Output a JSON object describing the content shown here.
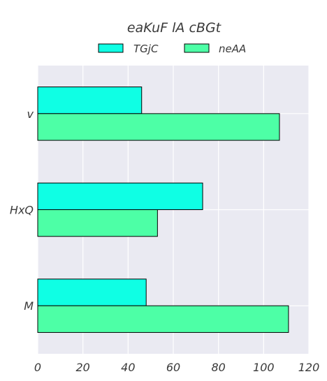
{
  "chart_data": {
    "type": "bar",
    "orientation": "horizontal",
    "title": "eaKuF  lA cBGt",
    "categories": [
      "v",
      "HxQ",
      "M"
    ],
    "series": [
      {
        "name": "TGjC",
        "values": [
          46,
          73,
          48
        ],
        "color": "#0fffe4"
      },
      {
        "name": "neAA",
        "values": [
          107,
          53,
          111
        ],
        "color": "#4dffa6"
      }
    ],
    "xlim": [
      0,
      120
    ],
    "xticks": [
      0,
      20,
      40,
      60,
      80,
      100,
      120
    ],
    "xlabel": "",
    "ylabel": "",
    "grid": true,
    "legend_position": "top-center",
    "background": "#eaeaf2",
    "grid_color": "#ffffff",
    "edge_color": "#000000"
  }
}
